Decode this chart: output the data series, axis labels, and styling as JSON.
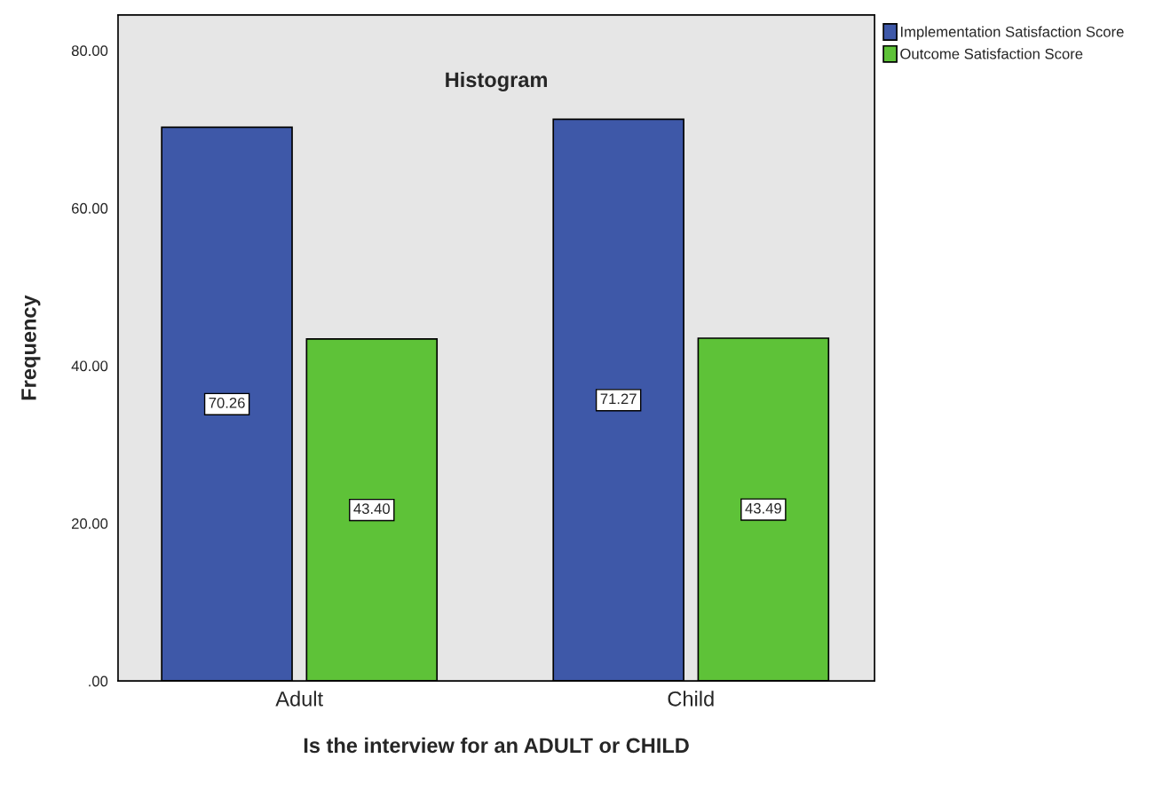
{
  "chart_data": {
    "type": "bar",
    "title": "Histogram",
    "xlabel": "Is the interview for an ADULT or CHILD",
    "ylabel": "Frequency",
    "categories": [
      "Adult",
      "Child"
    ],
    "series": [
      {
        "name": "Implementation Satisfaction Score",
        "color": "#3e58a8",
        "values": [
          70.26,
          71.27
        ]
      },
      {
        "name": "Outcome Satisfaction Score",
        "color": "#5ec238",
        "values": [
          43.4,
          43.49
        ]
      }
    ],
    "value_labels": [
      [
        "70.26",
        "71.27"
      ],
      [
        "43.40",
        "43.49"
      ]
    ],
    "ylim": [
      0,
      84.5
    ],
    "yticks": [
      {
        "value": 0,
        "label": ".00"
      },
      {
        "value": 20,
        "label": "20.00"
      },
      {
        "value": 40,
        "label": "40.00"
      },
      {
        "value": 60,
        "label": "60.00"
      },
      {
        "value": 80,
        "label": "80.00"
      }
    ],
    "grid": false,
    "legend": "top right"
  }
}
